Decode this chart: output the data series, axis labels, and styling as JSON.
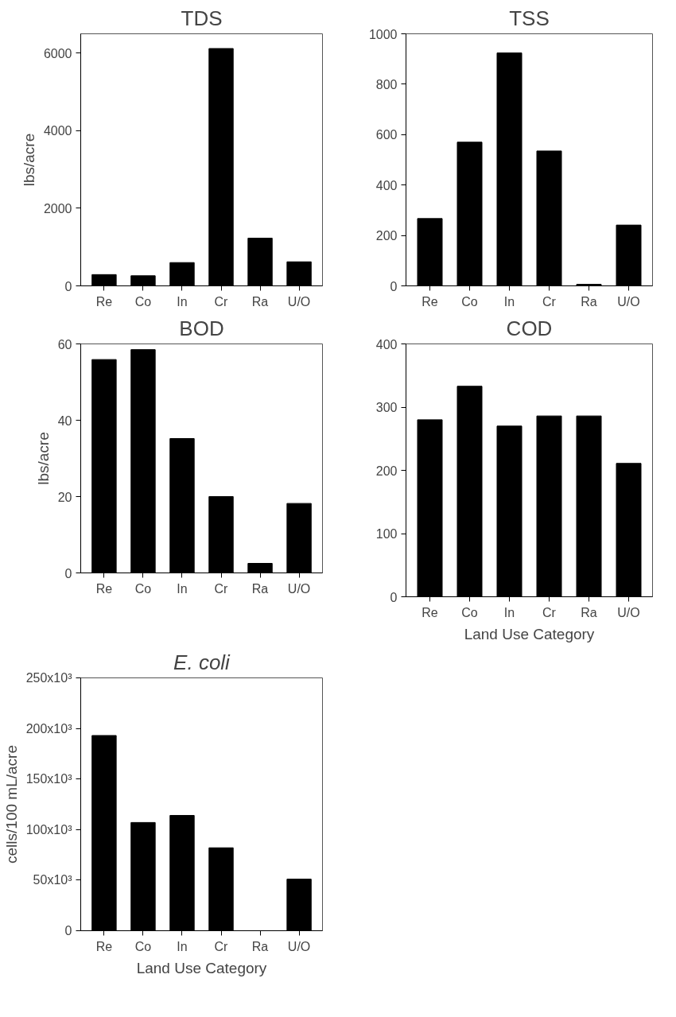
{
  "chart_data": [
    {
      "type": "bar",
      "title": "TDS",
      "ylabel": "lbs/acre",
      "categories": [
        "Re",
        "Co",
        "In",
        "Cr",
        "Ra",
        "U/O"
      ],
      "values": [
        290,
        260,
        600,
        6120,
        1230,
        620
      ],
      "color": "#000000",
      "ylim": [
        0,
        6500
      ],
      "yticks": [
        0,
        2000,
        4000,
        6000
      ],
      "grid": false
    },
    {
      "type": "bar",
      "title": "TSS",
      "categories": [
        "Re",
        "Co",
        "In",
        "Cr",
        "Ra",
        "U/O"
      ],
      "values": [
        267,
        570,
        924,
        535,
        6,
        241
      ],
      "color": "#000000",
      "ylim": [
        0,
        1000
      ],
      "yticks": [
        0,
        200,
        400,
        600,
        800,
        1000
      ],
      "grid": false
    },
    {
      "type": "bar",
      "title": "BOD",
      "ylabel": "lbs/acre",
      "categories": [
        "Re",
        "Co",
        "In",
        "Cr",
        "Ra",
        "U/O"
      ],
      "values": [
        55.9,
        58.5,
        35.2,
        20.0,
        2.5,
        18.2
      ],
      "color": "#000000",
      "ylim": [
        0,
        60
      ],
      "yticks": [
        0,
        20,
        40,
        60
      ],
      "grid": false
    },
    {
      "type": "bar",
      "title": "COD",
      "xlabel": "Land Use Category",
      "categories": [
        "Re",
        "Co",
        "In",
        "Cr",
        "Ra",
        "U/O"
      ],
      "values": [
        280,
        333,
        270,
        286,
        286,
        211
      ],
      "color": "#000000",
      "ylim": [
        0,
        400
      ],
      "yticks": [
        0,
        100,
        200,
        300,
        400
      ],
      "grid": false
    },
    {
      "type": "bar",
      "title": "E. coli",
      "xlabel": "Land Use Category",
      "ylabel": "cells/100 mL/acre",
      "categories": [
        "Re",
        "Co",
        "In",
        "Cr",
        "Ra",
        "U/O"
      ],
      "values": [
        193000,
        107000,
        114000,
        82000,
        null,
        51000
      ],
      "color": "#000000",
      "ylim": [
        0,
        250000
      ],
      "yticks": [
        0,
        {
          "value": 50000,
          "label": "50x10³"
        },
        {
          "value": 100000,
          "label": "100x10³"
        },
        {
          "value": 150000,
          "label": "150x10³"
        },
        {
          "value": 200000,
          "label": "200x10³"
        },
        {
          "value": 250000,
          "label": "250x10³"
        }
      ],
      "grid": false
    }
  ]
}
